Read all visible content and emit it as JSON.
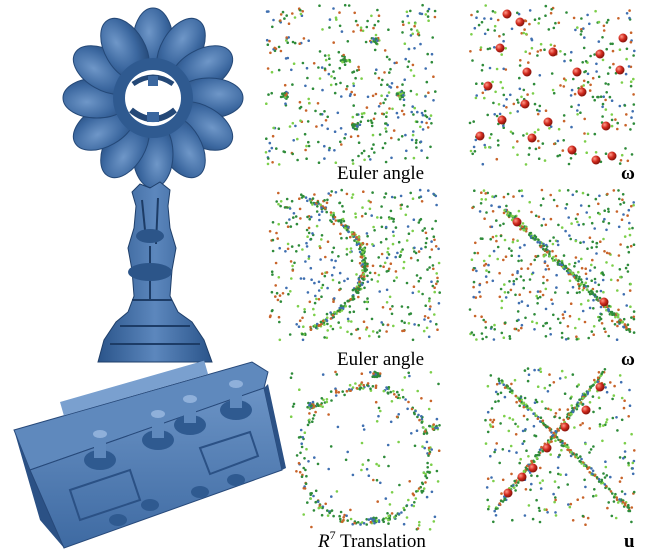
{
  "figure": {
    "rows": [
      {
        "shape": "flower-torus-model",
        "left_caption": "Euler angle",
        "right_caption": "ω"
      },
      {
        "shape": "statue-model",
        "left_caption": "Euler angle",
        "right_caption": "ω"
      },
      {
        "shape": "engine-cover-model",
        "left_caption": {
          "symbol": "R",
          "sup": "7",
          "text": " Translation"
        },
        "right_caption": "u"
      }
    ]
  },
  "colors": {
    "model_blue": "#3b679f",
    "model_shadow": "#244877",
    "model_highlight": "#6f97c8",
    "dot_green": "#2e8b3a",
    "dot_lightgreen": "#7ccf4a",
    "dot_orange": "#c8642a",
    "dot_blue": "#3f6fb0",
    "sphere_red": "#d22a1e"
  }
}
